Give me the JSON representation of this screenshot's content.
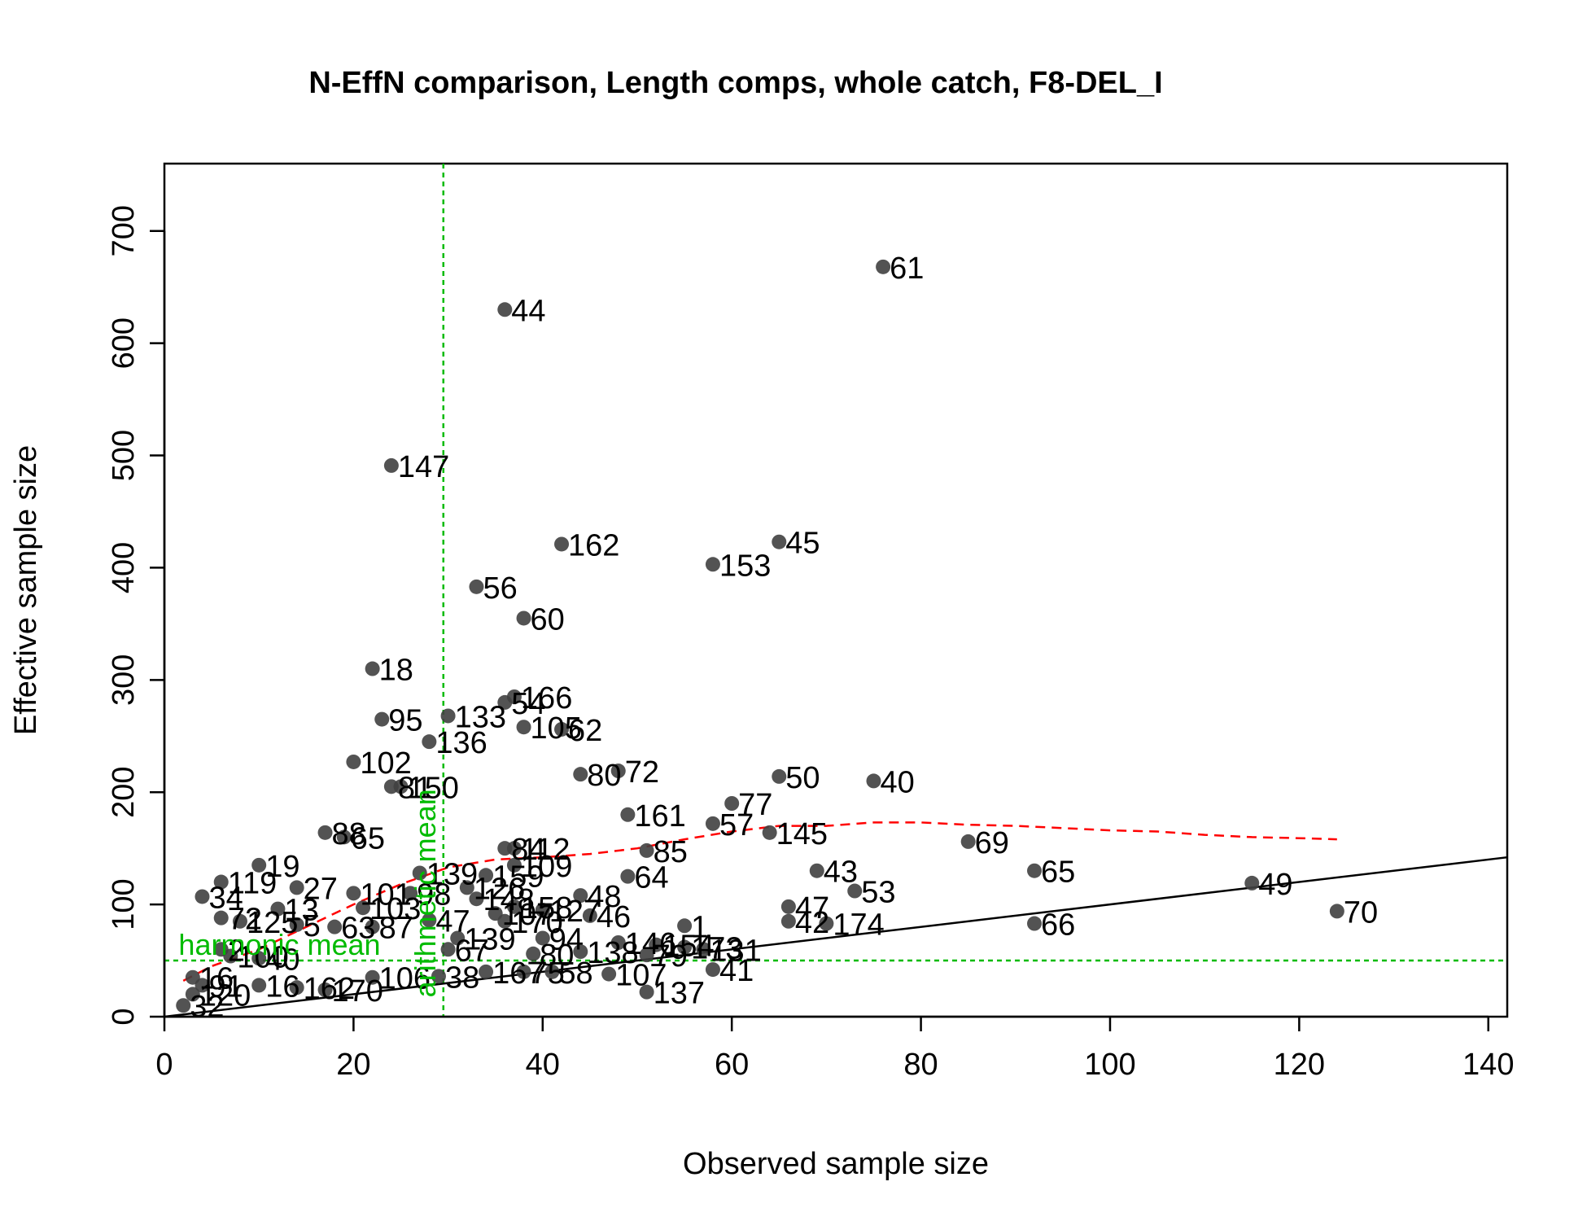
{
  "chart_data": {
    "type": "scatter",
    "title": "N-EffN comparison, Length comps, whole catch, F8-DEL_I",
    "xlabel": "Observed sample size",
    "ylabel": "Effective sample size",
    "xlim": [
      0,
      142
    ],
    "ylim": [
      0,
      760
    ],
    "xticks": [
      0,
      20,
      40,
      60,
      80,
      100,
      120,
      140
    ],
    "yticks": [
      0,
      100,
      200,
      300,
      400,
      500,
      600,
      700
    ],
    "grid": false,
    "colors": {
      "points": "#404040",
      "smoother": "#ff0000",
      "reference": "#00bb00",
      "one_to_one": "#000000"
    },
    "harmonic_mean": {
      "label": "harmonic mean",
      "value": 50
    },
    "arithmetic_mean": {
      "label": "arithmetic mean",
      "value": 29.5
    },
    "one_to_one_line": {
      "slope": 1,
      "intercept": 0
    },
    "points": [
      {
        "x": 76,
        "y": 668,
        "label": "61"
      },
      {
        "x": 36,
        "y": 630,
        "label": "44"
      },
      {
        "x": 24,
        "y": 491,
        "label": "147"
      },
      {
        "x": 42,
        "y": 421,
        "label": "162"
      },
      {
        "x": 65,
        "y": 423,
        "label": "45"
      },
      {
        "x": 58,
        "y": 403,
        "label": "153"
      },
      {
        "x": 33,
        "y": 383,
        "label": "56"
      },
      {
        "x": 38,
        "y": 355,
        "label": "60"
      },
      {
        "x": 22,
        "y": 310,
        "label": "18"
      },
      {
        "x": 37,
        "y": 285,
        "label": "166"
      },
      {
        "x": 36,
        "y": 280,
        "label": "54"
      },
      {
        "x": 23,
        "y": 265,
        "label": "95"
      },
      {
        "x": 30,
        "y": 268,
        "label": "133"
      },
      {
        "x": 38,
        "y": 258,
        "label": "105"
      },
      {
        "x": 42,
        "y": 256,
        "label": "62"
      },
      {
        "x": 28,
        "y": 245,
        "label": "136"
      },
      {
        "x": 20,
        "y": 227,
        "label": "102"
      },
      {
        "x": 44,
        "y": 216,
        "label": "80"
      },
      {
        "x": 48,
        "y": 219,
        "label": "72"
      },
      {
        "x": 65,
        "y": 214,
        "label": "50"
      },
      {
        "x": 75,
        "y": 210,
        "label": "40"
      },
      {
        "x": 24,
        "y": 205,
        "label": "81"
      },
      {
        "x": 25,
        "y": 205,
        "label": "150"
      },
      {
        "x": 60,
        "y": 190,
        "label": "77"
      },
      {
        "x": 49,
        "y": 180,
        "label": "161"
      },
      {
        "x": 58,
        "y": 172,
        "label": "57"
      },
      {
        "x": 64,
        "y": 164,
        "label": "145"
      },
      {
        "x": 17,
        "y": 164,
        "label": "88"
      },
      {
        "x": 19,
        "y": 160,
        "label": "65"
      },
      {
        "x": 85,
        "y": 156,
        "label": "69"
      },
      {
        "x": 36,
        "y": 150,
        "label": "84"
      },
      {
        "x": 37,
        "y": 150,
        "label": "112"
      },
      {
        "x": 51,
        "y": 148,
        "label": "85"
      },
      {
        "x": 37,
        "y": 135,
        "label": "109"
      },
      {
        "x": 10,
        "y": 135,
        "label": "19"
      },
      {
        "x": 69,
        "y": 130,
        "label": "43"
      },
      {
        "x": 92,
        "y": 130,
        "label": "65"
      },
      {
        "x": 49,
        "y": 125,
        "label": "64"
      },
      {
        "x": 27,
        "y": 128,
        "label": "139"
      },
      {
        "x": 34,
        "y": 126,
        "label": "159"
      },
      {
        "x": 115,
        "y": 119,
        "label": "49"
      },
      {
        "x": 6,
        "y": 120,
        "label": "119"
      },
      {
        "x": 14,
        "y": 115,
        "label": "27"
      },
      {
        "x": 73,
        "y": 112,
        "label": "53"
      },
      {
        "x": 32,
        "y": 115,
        "label": "126"
      },
      {
        "x": 20,
        "y": 110,
        "label": "101"
      },
      {
        "x": 44,
        "y": 108,
        "label": "48"
      },
      {
        "x": 4,
        "y": 107,
        "label": "34"
      },
      {
        "x": 26,
        "y": 110,
        "label": "98"
      },
      {
        "x": 33,
        "y": 105,
        "label": "148"
      },
      {
        "x": 37,
        "y": 98,
        "label": "158"
      },
      {
        "x": 40,
        "y": 95,
        "label": "127"
      },
      {
        "x": 124,
        "y": 94,
        "label": "70"
      },
      {
        "x": 66,
        "y": 98,
        "label": "47"
      },
      {
        "x": 45,
        "y": 90,
        "label": "46"
      },
      {
        "x": 21,
        "y": 97,
        "label": "103"
      },
      {
        "x": 12,
        "y": 96,
        "label": "13"
      },
      {
        "x": 35,
        "y": 92,
        "label": "107"
      },
      {
        "x": 92,
        "y": 83,
        "label": "66"
      },
      {
        "x": 66,
        "y": 85,
        "label": "42"
      },
      {
        "x": 70,
        "y": 83,
        "label": "174"
      },
      {
        "x": 36,
        "y": 85,
        "label": "170"
      },
      {
        "x": 6,
        "y": 88,
        "label": "72"
      },
      {
        "x": 8,
        "y": 85,
        "label": "125"
      },
      {
        "x": 14,
        "y": 82,
        "label": "5"
      },
      {
        "x": 18,
        "y": 80,
        "label": "63"
      },
      {
        "x": 22,
        "y": 80,
        "label": "87"
      },
      {
        "x": 28,
        "y": 86,
        "label": "47"
      },
      {
        "x": 55,
        "y": 81,
        "label": "1"
      },
      {
        "x": 40,
        "y": 70,
        "label": "94"
      },
      {
        "x": 48,
        "y": 66,
        "label": "146"
      },
      {
        "x": 52,
        "y": 64,
        "label": "154"
      },
      {
        "x": 55,
        "y": 62,
        "label": "173"
      },
      {
        "x": 57,
        "y": 60,
        "label": "131"
      },
      {
        "x": 31,
        "y": 70,
        "label": "139"
      },
      {
        "x": 30,
        "y": 60,
        "label": "67"
      },
      {
        "x": 44,
        "y": 58,
        "label": "138"
      },
      {
        "x": 51,
        "y": 55,
        "label": "79"
      },
      {
        "x": 6,
        "y": 60,
        "label": "2"
      },
      {
        "x": 10,
        "y": 52,
        "label": "40"
      },
      {
        "x": 39,
        "y": 56,
        "label": "80"
      },
      {
        "x": 58,
        "y": 42,
        "label": "41"
      },
      {
        "x": 34,
        "y": 40,
        "label": "167"
      },
      {
        "x": 38,
        "y": 40,
        "label": "75"
      },
      {
        "x": 41,
        "y": 40,
        "label": "58"
      },
      {
        "x": 47,
        "y": 38,
        "label": "107"
      },
      {
        "x": 29,
        "y": 36,
        "label": "38"
      },
      {
        "x": 22,
        "y": 35,
        "label": "106"
      },
      {
        "x": 3,
        "y": 35,
        "label": "16"
      },
      {
        "x": 10,
        "y": 28,
        "label": "16"
      },
      {
        "x": 14,
        "y": 26,
        "label": "162"
      },
      {
        "x": 17,
        "y": 24,
        "label": "170"
      },
      {
        "x": 51,
        "y": 22,
        "label": "137"
      },
      {
        "x": 3,
        "y": 20,
        "label": "120"
      },
      {
        "x": 2,
        "y": 10,
        "label": "32"
      },
      {
        "x": 4,
        "y": 28,
        "label": "91"
      },
      {
        "x": 7,
        "y": 54,
        "label": "100"
      }
    ],
    "smoother": [
      [
        2,
        32
      ],
      [
        5,
        45
      ],
      [
        10,
        60
      ],
      [
        15,
        80
      ],
      [
        20,
        100
      ],
      [
        25,
        118
      ],
      [
        30,
        133
      ],
      [
        35,
        140
      ],
      [
        40,
        142
      ],
      [
        45,
        145
      ],
      [
        50,
        150
      ],
      [
        55,
        158
      ],
      [
        60,
        165
      ],
      [
        65,
        170
      ],
      [
        70,
        170
      ],
      [
        75,
        173
      ],
      [
        80,
        173
      ],
      [
        85,
        171
      ],
      [
        90,
        170
      ],
      [
        95,
        168
      ],
      [
        100,
        166
      ],
      [
        105,
        165
      ],
      [
        110,
        162
      ],
      [
        115,
        160
      ],
      [
        120,
        159
      ],
      [
        124,
        158
      ]
    ]
  }
}
